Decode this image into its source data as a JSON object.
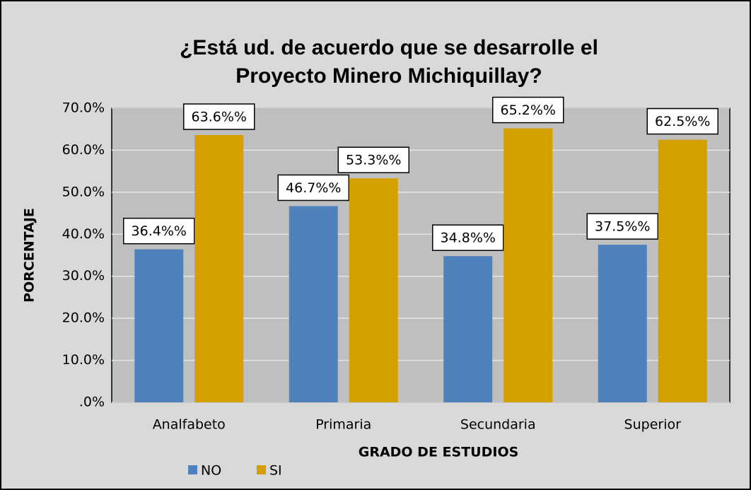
{
  "chart_data": {
    "type": "bar",
    "title": "¿Está ud. de acuerdo que se desarrolle el Proyecto Minero Michiquillay?",
    "x_label": "GRADO DE ESTUDIOS",
    "y_label": "PORCENTAJE",
    "categories": [
      "Analfabeto",
      "Primaria",
      "Secundaria",
      "Superior"
    ],
    "series": [
      {
        "name": "NO",
        "color": "#4f81bd",
        "values": [
          36.4,
          46.7,
          34.8,
          37.5
        ],
        "value_labels": [
          "36.4%%",
          "46.7%%",
          "34.8%%",
          "37.5%%"
        ]
      },
      {
        "name": "SI",
        "color": "#d4a000",
        "values": [
          63.6,
          53.3,
          65.2,
          62.5
        ],
        "value_labels": [
          "63.6%%",
          "53.3%%",
          "65.2%%",
          "62.5%%"
        ]
      }
    ],
    "ylim": [
      0,
      70
    ],
    "yticks": [
      {
        "value": 0,
        "label": ".0%"
      },
      {
        "value": 10,
        "label": "10.0%"
      },
      {
        "value": 20,
        "label": "20.0%"
      },
      {
        "value": 30,
        "label": "30.0%"
      },
      {
        "value": 40,
        "label": "40.0%"
      },
      {
        "value": 50,
        "label": "50.0%"
      },
      {
        "value": 60,
        "label": "60.0%"
      },
      {
        "value": 70,
        "label": "70.0%"
      }
    ],
    "grid": true,
    "legend": "bottom-left"
  }
}
